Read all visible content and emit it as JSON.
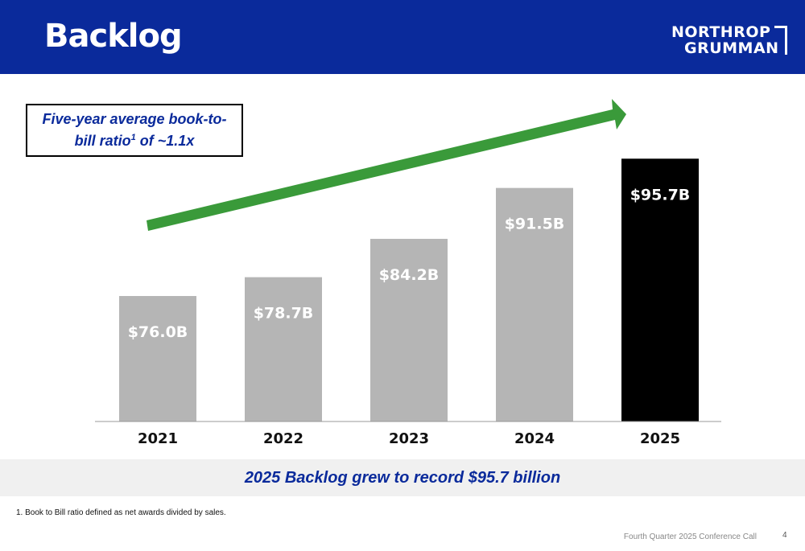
{
  "header": {
    "title": "Backlog",
    "logo": {
      "line1": "NORTHROP",
      "line2": "GRUMMAN"
    },
    "background_color": "#0a2a9b"
  },
  "callout": {
    "text_before_sup": "Five-year average book-to-bill ratio",
    "superscript": "1",
    "text_after_sup": " of ~1.1x"
  },
  "chart_data": {
    "type": "bar",
    "categories": [
      "2021",
      "2022",
      "2023",
      "2024",
      "2025"
    ],
    "values": [
      76.0,
      78.7,
      84.2,
      91.5,
      95.7
    ],
    "data_labels": [
      "$76.0B",
      "$78.7B",
      "$84.2B",
      "$91.5B",
      "$95.7B"
    ],
    "unit": "$B",
    "title": "",
    "xlabel": "",
    "ylabel": "",
    "ylim": [
      58,
      100
    ],
    "grid": false,
    "legend": "none",
    "colors": [
      "#b5b5b5",
      "#b5b5b5",
      "#b5b5b5",
      "#b5b5b5",
      "#000000"
    ],
    "trend_arrow_color": "#3a9a3a",
    "axis_color": "#999999"
  },
  "banner": {
    "text": "2025 Backlog grew to record $95.7 billion"
  },
  "footnote": {
    "text": "1.  Book to Bill ratio defined as net awards divided by sales."
  },
  "footer": {
    "text": "Fourth Quarter 2025 Conference Call",
    "page_number": "4"
  }
}
